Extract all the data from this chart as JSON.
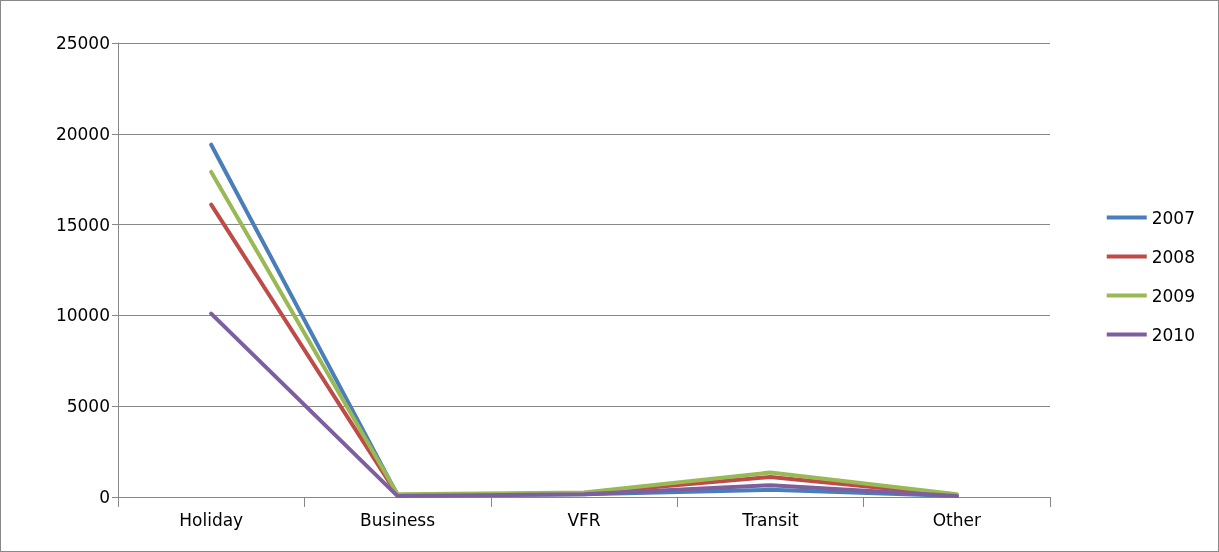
{
  "chart_data": {
    "type": "line",
    "categories": [
      "Holiday",
      "Business",
      "VFR",
      "Transit",
      "Other"
    ],
    "series": [
      {
        "name": "2007",
        "color": "#4a7ebb",
        "values": [
          19400,
          100,
          150,
          400,
          50
        ]
      },
      {
        "name": "2008",
        "color": "#be4b48",
        "values": [
          16100,
          100,
          200,
          1100,
          100
        ]
      },
      {
        "name": "2009",
        "color": "#98b954",
        "values": [
          17900,
          150,
          250,
          1350,
          150
        ]
      },
      {
        "name": "2010",
        "color": "#7d5fa0",
        "values": [
          10100,
          50,
          150,
          650,
          50
        ]
      }
    ],
    "ylim": [
      0,
      25000
    ],
    "yticks": [
      0,
      5000,
      10000,
      15000,
      20000,
      25000
    ],
    "grid": "y",
    "legend": "right",
    "marker": "none",
    "line_style": "solid"
  }
}
